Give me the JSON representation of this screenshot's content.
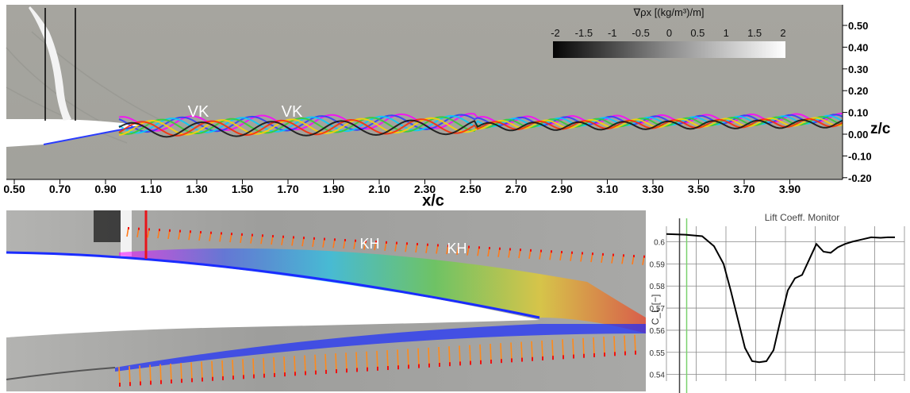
{
  "top_panel": {
    "colorbar": {
      "title": "∇ρx [(kg/m³)/m]",
      "ticks": [
        "-2",
        "-1.5",
        "-1",
        "-0.5",
        "0",
        "0.5",
        "1",
        "1.5",
        "2"
      ]
    },
    "x_axis": {
      "label": "x/c",
      "ticks": [
        "0.50",
        "0.70",
        "0.90",
        "1.10",
        "1.30",
        "1.50",
        "1.70",
        "1.90",
        "2.10",
        "2.30",
        "2.50",
        "2.70",
        "2.90",
        "3.10",
        "3.30",
        "3.50",
        "3.70",
        "3.90"
      ]
    },
    "z_axis": {
      "label": "z/c",
      "ticks": [
        "0.50",
        "0.40",
        "0.30",
        "0.20",
        "0.10",
        "0.00",
        "-0.10",
        "-0.20"
      ]
    },
    "annotations": [
      "VK",
      "VK"
    ]
  },
  "bottom_panel": {
    "annotations": [
      "KH",
      "KH"
    ]
  },
  "lift_monitor": {
    "title": "Lift Coeff. Monitor",
    "ylabel": "C_L [−]",
    "y_ticks": [
      "0.6",
      "0.59",
      "0.58",
      "0.57",
      "0.56",
      "0.55",
      "0.54"
    ]
  },
  "chart_data": {
    "type": "line",
    "title": "Lift Coeff. Monitor",
    "xlabel": "",
    "ylabel": "C_L [−]",
    "ylim": [
      0.537,
      0.607
    ],
    "xlim": [
      0,
      10
    ],
    "grid": true,
    "series": [
      {
        "values_x": [
          0,
          0.8,
          1.5,
          2.0,
          2.4,
          2.7,
          3.0,
          3.3,
          3.6,
          3.9,
          4.2,
          4.5,
          4.8,
          5.1,
          5.4,
          5.7,
          6.0,
          6.3,
          6.6,
          6.9,
          7.2,
          7.5,
          7.8,
          8.2,
          8.6,
          9.0,
          9.3,
          9.6
        ],
        "values_y": [
          0.6035,
          0.6032,
          0.6025,
          0.598,
          0.59,
          0.578,
          0.565,
          0.552,
          0.546,
          0.5455,
          0.546,
          0.551,
          0.565,
          0.578,
          0.5835,
          0.585,
          0.592,
          0.599,
          0.5955,
          0.595,
          0.5975,
          0.599,
          0.6,
          0.601,
          0.602,
          0.6018,
          0.602,
          0.602
        ]
      }
    ],
    "vertical_markers": [
      {
        "x": 0.55,
        "color": "#444444"
      },
      {
        "x": 0.85,
        "color": "#7bd16f"
      }
    ]
  }
}
